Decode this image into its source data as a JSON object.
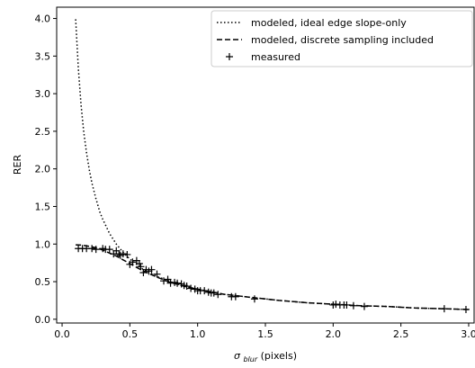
{
  "chart_data": {
    "type": "line",
    "xlabel_main": "σ",
    "xlabel_sub": "blur",
    "xlabel_rest": " (pixels)",
    "ylabel": "RER",
    "xlim": [
      -0.04,
      3.04
    ],
    "ylim": [
      -0.05,
      4.15
    ],
    "xticks": [
      0.0,
      0.5,
      1.0,
      1.5,
      2.0,
      2.5,
      3.0
    ],
    "xtick_labels": [
      "0.0",
      "0.5",
      "1.0",
      "1.5",
      "2.0",
      "2.5",
      "3.0"
    ],
    "yticks": [
      0.0,
      0.5,
      1.0,
      1.5,
      2.0,
      2.5,
      3.0,
      3.5,
      4.0
    ],
    "ytick_labels": [
      "0.0",
      "0.5",
      "1.0",
      "1.5",
      "2.0",
      "2.5",
      "3.0",
      "3.5",
      "4.0"
    ],
    "legend_position": "top-right",
    "series": [
      {
        "name": "modeled, ideal edge slope-only",
        "style": "dotted",
        "color": "#000000",
        "x": [
          0.1,
          0.12,
          0.14,
          0.16,
          0.18,
          0.2,
          0.22,
          0.25,
          0.28,
          0.3,
          0.35,
          0.4,
          0.45,
          0.5,
          0.55,
          0.6,
          0.7,
          0.8,
          0.9,
          1.0,
          1.2,
          1.4,
          1.6,
          1.8,
          2.0,
          2.2,
          2.4,
          2.6,
          2.8,
          3.0
        ],
        "y": [
          3.99,
          3.33,
          2.85,
          2.49,
          2.22,
          1.99,
          1.81,
          1.6,
          1.42,
          1.33,
          1.14,
          1.0,
          0.89,
          0.8,
          0.73,
          0.66,
          0.57,
          0.5,
          0.44,
          0.4,
          0.33,
          0.29,
          0.25,
          0.22,
          0.2,
          0.18,
          0.17,
          0.15,
          0.14,
          0.13
        ]
      },
      {
        "name": "modeled, discrete sampling included",
        "style": "dashed",
        "color": "#000000",
        "x": [
          0.1,
          0.15,
          0.2,
          0.25,
          0.3,
          0.35,
          0.4,
          0.45,
          0.5,
          0.55,
          0.6,
          0.7,
          0.8,
          0.9,
          1.0,
          1.2,
          1.4,
          1.6,
          1.8,
          2.0,
          2.2,
          2.4,
          2.6,
          2.8,
          3.0
        ],
        "y": [
          0.99,
          0.985,
          0.97,
          0.95,
          0.92,
          0.88,
          0.84,
          0.79,
          0.74,
          0.69,
          0.64,
          0.56,
          0.49,
          0.44,
          0.4,
          0.33,
          0.29,
          0.25,
          0.22,
          0.2,
          0.18,
          0.17,
          0.15,
          0.14,
          0.13
        ]
      },
      {
        "name": "measured",
        "style": "plus",
        "color": "#000000",
        "x": [
          0.12,
          0.15,
          0.18,
          0.22,
          0.25,
          0.3,
          0.32,
          0.35,
          0.38,
          0.4,
          0.42,
          0.43,
          0.45,
          0.48,
          0.5,
          0.52,
          0.55,
          0.57,
          0.58,
          0.6,
          0.62,
          0.64,
          0.66,
          0.7,
          0.75,
          0.78,
          0.8,
          0.83,
          0.85,
          0.88,
          0.9,
          0.92,
          0.95,
          0.98,
          1.0,
          1.02,
          1.05,
          1.08,
          1.1,
          1.12,
          1.15,
          1.25,
          1.28,
          1.42,
          2.0,
          2.02,
          2.05,
          2.08,
          2.1,
          2.15,
          2.23,
          2.82,
          2.98
        ],
        "y": [
          0.94,
          0.94,
          0.94,
          0.94,
          0.93,
          0.94,
          0.93,
          0.93,
          0.87,
          0.91,
          0.87,
          0.85,
          0.87,
          0.86,
          0.73,
          0.76,
          0.78,
          0.74,
          0.7,
          0.62,
          0.66,
          0.64,
          0.66,
          0.6,
          0.51,
          0.53,
          0.48,
          0.49,
          0.48,
          0.47,
          0.45,
          0.44,
          0.41,
          0.4,
          0.38,
          0.38,
          0.38,
          0.36,
          0.35,
          0.35,
          0.33,
          0.3,
          0.3,
          0.27,
          0.19,
          0.2,
          0.19,
          0.19,
          0.19,
          0.18,
          0.17,
          0.14,
          0.13
        ]
      }
    ]
  }
}
